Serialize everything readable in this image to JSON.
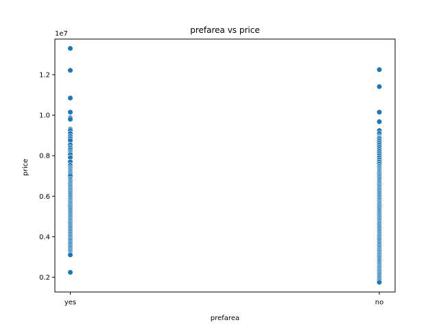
{
  "chart_data": {
    "type": "scatter",
    "title": "prefarea vs price",
    "xlabel": "prefarea",
    "ylabel": "price",
    "y_offset_label": "1e7",
    "categories": [
      "yes",
      "no"
    ],
    "ylim": [
      1270000,
      13760000
    ],
    "yticks": [
      2000000,
      4000000,
      6000000,
      8000000,
      10000000,
      12000000
    ],
    "ytick_labels": [
      "0.2",
      "0.4",
      "0.6",
      "0.8",
      "1.0",
      "1.2"
    ],
    "grid": false,
    "series": [
      {
        "values": [
          {
            "x": "yes",
            "y": [
              13300000,
              12215000,
              10850000,
              10150000,
              9870000,
              9800000,
              9310000,
              9240000,
              9100000,
              9100000,
              8960000,
              8855000,
              8750000,
              8540000,
              8400000,
              8400000,
              8295000,
              8190000,
              8120000,
              8050000,
              7910000,
              7700000,
              7525000,
              7420000,
              7350000,
              7280000,
              7210000,
              7140000,
              7070000,
              7000000,
              6860000,
              6790000,
              6720000,
              6650000,
              6580000,
              6510000,
              6440000,
              6370000,
              6300000,
              6230000,
              6160000,
              6090000,
              6020000,
              5950000,
              5880000,
              5810000,
              5740000,
              5670000,
              5600000,
              5530000,
              5460000,
              5390000,
              5320000,
              5250000,
              5180000,
              5110000,
              5040000,
              4970000,
              4900000,
              4830000,
              4760000,
              4690000,
              4620000,
              4550000,
              4480000,
              4410000,
              4340000,
              4270000,
              4200000,
              4130000,
              4060000,
              3990000,
              3920000,
              3850000,
              3780000,
              3710000,
              3640000,
              3570000,
              3500000,
              3430000,
              3360000,
              3290000,
              3220000,
              3150000,
              3100000,
              2240000
            ]
          },
          {
            "x": "no",
            "y": [
              12250000,
              11410000,
              10150000,
              9681000,
              9240000,
              9100000,
              8960000,
              8890000,
              8855000,
              8750000,
              8645000,
              8540000,
              8435000,
              8330000,
              8225000,
              8120000,
              8015000,
              7910000,
              7805000,
              7700000,
              7595000,
              7490000,
              7420000,
              7350000,
              7280000,
              7210000,
              7140000,
              7070000,
              7000000,
              6930000,
              6860000,
              6790000,
              6720000,
              6650000,
              6580000,
              6510000,
              6440000,
              6370000,
              6300000,
              6230000,
              6160000,
              6090000,
              6020000,
              5950000,
              5880000,
              5810000,
              5740000,
              5670000,
              5600000,
              5530000,
              5460000,
              5390000,
              5320000,
              5250000,
              5180000,
              5110000,
              5040000,
              4970000,
              4900000,
              4830000,
              4760000,
              4690000,
              4620000,
              4550000,
              4480000,
              4410000,
              4340000,
              4270000,
              4200000,
              4130000,
              4060000,
              3990000,
              3920000,
              3850000,
              3780000,
              3710000,
              3640000,
              3570000,
              3500000,
              3430000,
              3360000,
              3290000,
              3220000,
              3150000,
              3080000,
              3010000,
              2940000,
              2870000,
              2800000,
              2730000,
              2660000,
              2590000,
              2520000,
              2450000,
              2380000,
              2310000,
              2240000,
              2170000,
              2100000,
              2030000,
              1960000,
              1890000,
              1820000,
              1750000
            ]
          }
        ]
      }
    ]
  }
}
